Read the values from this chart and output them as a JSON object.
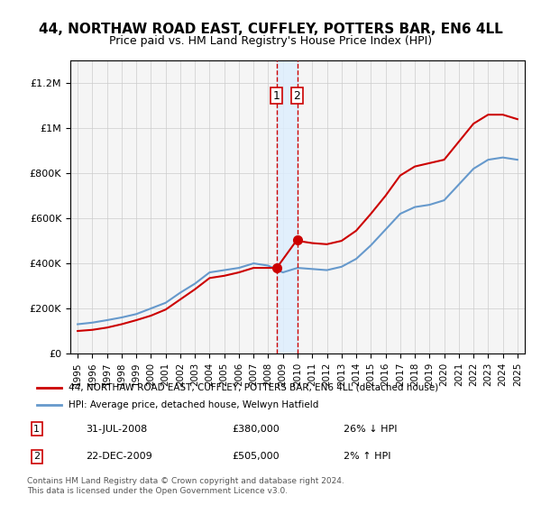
{
  "title": "44, NORTHAW ROAD EAST, CUFFLEY, POTTERS BAR, EN6 4LL",
  "subtitle": "Price paid vs. HM Land Registry's House Price Index (HPI)",
  "legend_line1": "44, NORTHAW ROAD EAST, CUFFLEY, POTTERS BAR, EN6 4LL (detached house)",
  "legend_line2": "HPI: Average price, detached house, Welwyn Hatfield",
  "footer": "Contains HM Land Registry data © Crown copyright and database right 2024.\nThis data is licensed under the Open Government Licence v3.0.",
  "annotation1_label": "1",
  "annotation1_date": "31-JUL-2008",
  "annotation1_price": "£380,000",
  "annotation1_hpi": "26% ↓ HPI",
  "annotation2_label": "2",
  "annotation2_date": "22-DEC-2009",
  "annotation2_price": "£505,000",
  "annotation2_hpi": "2% ↑ HPI",
  "marker1_x": 2008.58,
  "marker2_x": 2009.97,
  "marker1_y": 380000,
  "marker2_y": 505000,
  "red_color": "#cc0000",
  "blue_color": "#6699cc",
  "shade_color": "#ddeeff",
  "background_color": "#f0f0f0",
  "plot_bg": "#f5f5f5",
  "ylim": [
    0,
    1300000
  ],
  "xlim": [
    1994.5,
    2025.5
  ],
  "hpi_years": [
    1995,
    1996,
    1997,
    1998,
    1999,
    2000,
    2001,
    2002,
    2003,
    2004,
    2005,
    2006,
    2007,
    2008,
    2009,
    2010,
    2011,
    2012,
    2013,
    2014,
    2015,
    2016,
    2017,
    2018,
    2019,
    2020,
    2021,
    2022,
    2023,
    2024,
    2025
  ],
  "hpi_values": [
    130000,
    137000,
    148000,
    160000,
    175000,
    200000,
    225000,
    270000,
    310000,
    360000,
    370000,
    380000,
    400000,
    390000,
    360000,
    380000,
    375000,
    370000,
    385000,
    420000,
    480000,
    550000,
    620000,
    650000,
    660000,
    680000,
    750000,
    820000,
    860000,
    870000,
    860000
  ],
  "price_years": [
    1995,
    1996,
    1997,
    1998,
    1999,
    2000,
    2001,
    2002,
    2003,
    2004,
    2005,
    2006,
    2007,
    2008.58,
    2009.97,
    2010,
    2011,
    2012,
    2013,
    2014,
    2015,
    2016,
    2017,
    2018,
    2019,
    2020,
    2021,
    2022,
    2023,
    2024,
    2025
  ],
  "price_values": [
    100000,
    105000,
    115000,
    130000,
    148000,
    168000,
    195000,
    240000,
    285000,
    335000,
    345000,
    360000,
    380000,
    380000,
    505000,
    500000,
    490000,
    485000,
    500000,
    545000,
    620000,
    700000,
    790000,
    830000,
    845000,
    860000,
    940000,
    1020000,
    1060000,
    1060000,
    1040000
  ]
}
